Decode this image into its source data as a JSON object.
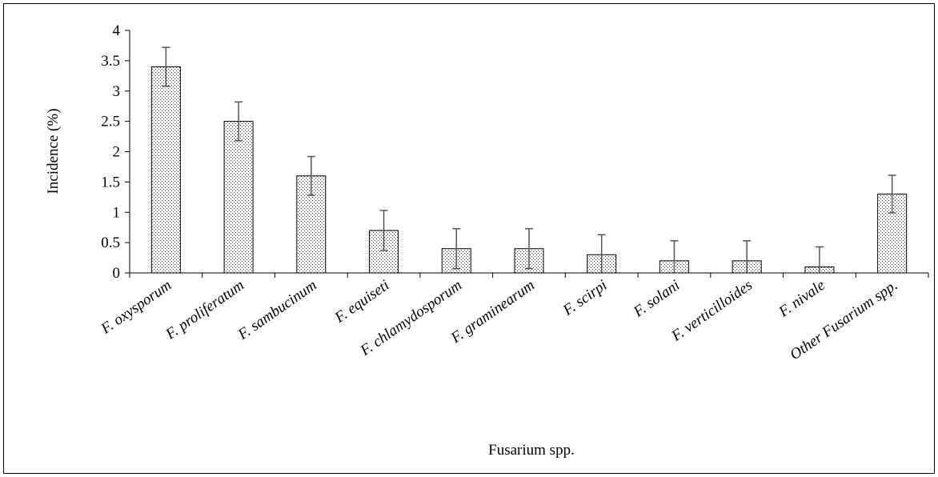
{
  "chart_data": {
    "type": "bar",
    "categories": [
      "F. oxysporum",
      "F. proliferatum",
      "F. sambucinum",
      "F. equiseti",
      "F. chlamydosporum",
      "F. graminearum",
      "F. scirpi",
      "F. solani",
      "F. verticilloides",
      "F. nivale",
      "Other Fusarium spp."
    ],
    "values": [
      3.4,
      2.5,
      1.6,
      0.7,
      0.4,
      0.4,
      0.3,
      0.2,
      0.2,
      0.1,
      1.3
    ],
    "error": [
      0.32,
      0.32,
      0.32,
      0.33,
      0.33,
      0.33,
      0.33,
      0.33,
      0.33,
      0.33,
      0.31
    ],
    "xlabel": "Fusarium spp.",
    "ylabel": "Incidence (%)",
    "ylim": [
      0,
      4
    ],
    "yticks": [
      "0",
      "0.5",
      "1",
      "1.5",
      "2",
      "2.5",
      "3",
      "3.5",
      "4"
    ],
    "grid": false,
    "legend": false,
    "bar_fill": "dotted",
    "colors": {
      "bar_edge": "#000000",
      "error_bar": "#555555",
      "axis": "#000000"
    }
  }
}
